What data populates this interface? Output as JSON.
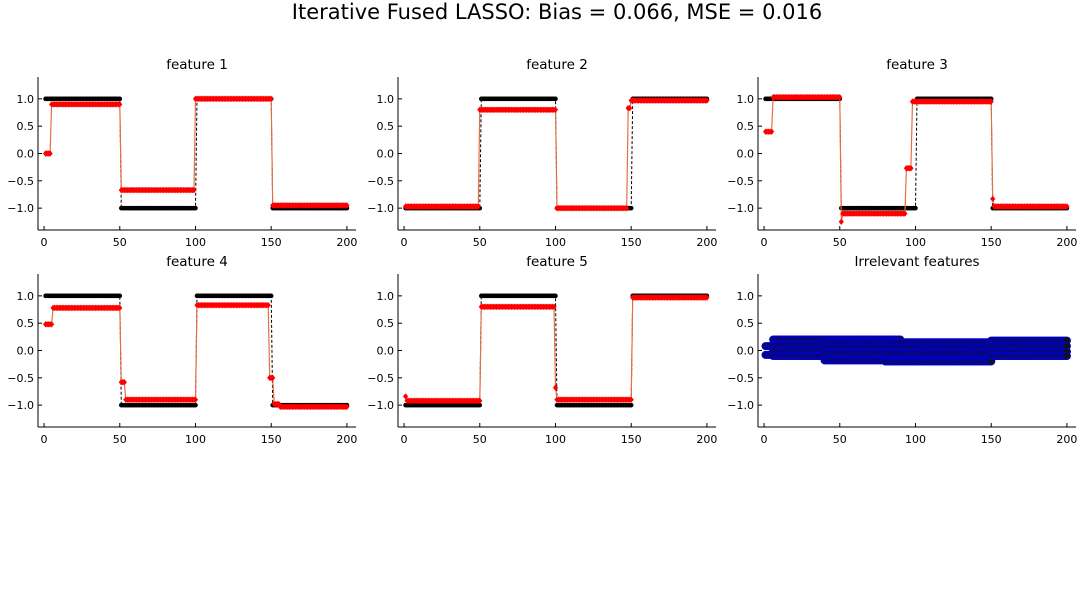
{
  "figure": {
    "title": "Iterative Fused LASSO: Bias = 0.066, MSE = 0.016"
  },
  "colors": {
    "truth": "#000000",
    "estimate_marker": "#ff0000",
    "estimate_line": "#e26f46",
    "irrelevant_marker": "#0000cc",
    "axis": "#000000"
  },
  "chart_data": [
    {
      "type": "line",
      "title": "feature 1",
      "xlabel": "",
      "ylabel": "",
      "xlim": [
        -4,
        206
      ],
      "ylim": [
        -1.4,
        1.4
      ],
      "xticks": [
        "0",
        "50",
        "100",
        "150",
        "200"
      ],
      "yticks": [
        "-1.0",
        "-0.5",
        "0.0",
        "0.5",
        "1.0"
      ],
      "grid": false,
      "series": [
        {
          "role": "truth",
          "style": "dashed line with dots",
          "segments": [
            [
              1,
              50,
              1.0
            ],
            [
              51,
              100,
              -1.0
            ],
            [
              101,
              150,
              1.0
            ],
            [
              151,
              200,
              -1.0
            ]
          ]
        },
        {
          "role": "estimate",
          "style": "line with diamond markers",
          "segments": [
            [
              1,
              4,
              0.0
            ],
            [
              5,
              50,
              0.9
            ],
            [
              51,
              99,
              -0.67
            ],
            [
              100,
              150,
              1.0
            ],
            [
              151,
              200,
              -0.95
            ]
          ]
        }
      ]
    },
    {
      "type": "line",
      "title": "feature 2",
      "xlabel": "",
      "ylabel": "",
      "xlim": [
        -4,
        206
      ],
      "ylim": [
        -1.4,
        1.4
      ],
      "xticks": [
        "0",
        "50",
        "100",
        "150",
        "200"
      ],
      "yticks": [
        "-1.0",
        "-0.5",
        "0.0",
        "0.5",
        "1.0"
      ],
      "grid": false,
      "series": [
        {
          "role": "truth",
          "style": "dashed line with dots",
          "segments": [
            [
              1,
              50,
              -1.0
            ],
            [
              51,
              100,
              1.0
            ],
            [
              101,
              150,
              -1.0
            ],
            [
              151,
              200,
              1.0
            ]
          ]
        },
        {
          "role": "estimate",
          "style": "line with diamond markers",
          "segments": [
            [
              1,
              49,
              -0.97
            ],
            [
              50,
              100,
              0.8
            ],
            [
              101,
              147,
              -1.0
            ],
            [
              148,
              149,
              0.83
            ],
            [
              150,
              200,
              0.97
            ]
          ]
        }
      ]
    },
    {
      "type": "line",
      "title": "feature 3",
      "xlabel": "",
      "ylabel": "",
      "xlim": [
        -4,
        206
      ],
      "ylim": [
        -1.4,
        1.4
      ],
      "xticks": [
        "0",
        "50",
        "100",
        "150",
        "200"
      ],
      "yticks": [
        "-1.0",
        "-0.5",
        "0.0",
        "0.5",
        "1.0"
      ],
      "grid": false,
      "series": [
        {
          "role": "truth",
          "style": "dashed line with dots",
          "segments": [
            [
              1,
              50,
              1.0
            ],
            [
              51,
              100,
              -1.0
            ],
            [
              101,
              150,
              1.0
            ],
            [
              151,
              200,
              -1.0
            ]
          ]
        },
        {
          "role": "estimate",
          "style": "line with diamond markers",
          "segments": [
            [
              1,
              5,
              0.4
            ],
            [
              6,
              50,
              1.03
            ],
            [
              51,
              51,
              -1.25
            ],
            [
              52,
              93,
              -1.1
            ],
            [
              94,
              97,
              -0.27
            ],
            [
              98,
              150,
              0.95
            ],
            [
              151,
              151,
              -0.83
            ],
            [
              152,
              200,
              -0.97
            ]
          ]
        }
      ]
    },
    {
      "type": "line",
      "title": "feature 4",
      "xlabel": "",
      "ylabel": "",
      "xlim": [
        -4,
        206
      ],
      "ylim": [
        -1.4,
        1.4
      ],
      "xticks": [
        "0",
        "50",
        "100",
        "150",
        "200"
      ],
      "yticks": [
        "-1.0",
        "-0.5",
        "0.0",
        "0.5",
        "1.0"
      ],
      "grid": false,
      "series": [
        {
          "role": "truth",
          "style": "dashed line with dots",
          "segments": [
            [
              1,
              50,
              1.0
            ],
            [
              51,
              100,
              -1.0
            ],
            [
              101,
              150,
              1.0
            ],
            [
              151,
              200,
              -1.0
            ]
          ]
        },
        {
          "role": "estimate",
          "style": "line with diamond markers",
          "segments": [
            [
              1,
              5,
              0.48
            ],
            [
              6,
              50,
              0.78
            ],
            [
              51,
              53,
              -0.58
            ],
            [
              54,
              100,
              -0.9
            ],
            [
              101,
              148,
              0.83
            ],
            [
              149,
              151,
              -0.5
            ],
            [
              152,
              155,
              -0.98
            ],
            [
              156,
              200,
              -1.03
            ]
          ]
        }
      ]
    },
    {
      "type": "line",
      "title": "feature 5",
      "xlabel": "",
      "ylabel": "",
      "xlim": [
        -4,
        206
      ],
      "ylim": [
        -1.4,
        1.4
      ],
      "xticks": [
        "0",
        "50",
        "100",
        "150",
        "200"
      ],
      "yticks": [
        "-1.0",
        "-0.5",
        "0.0",
        "0.5",
        "1.0"
      ],
      "grid": false,
      "series": [
        {
          "role": "truth",
          "style": "dashed line with dots",
          "segments": [
            [
              1,
              50,
              -1.0
            ],
            [
              51,
              100,
              1.0
            ],
            [
              101,
              150,
              -1.0
            ],
            [
              151,
              200,
              1.0
            ]
          ]
        },
        {
          "role": "estimate",
          "style": "line with diamond markers",
          "segments": [
            [
              1,
              1,
              -0.84
            ],
            [
              2,
              50,
              -0.92
            ],
            [
              51,
              99,
              0.8
            ],
            [
              100,
              100,
              -0.68
            ],
            [
              101,
              150,
              -0.9
            ],
            [
              151,
              200,
              0.97
            ]
          ]
        }
      ]
    },
    {
      "type": "scatter",
      "title": "Irrelevant features",
      "xlabel": "",
      "ylabel": "",
      "xlim": [
        -4,
        206
      ],
      "ylim": [
        -1.4,
        1.4
      ],
      "xticks": [
        "0",
        "50",
        "100",
        "150",
        "200"
      ],
      "yticks": [
        "-1.0",
        "-0.5",
        "0.0",
        "0.5",
        "1.0"
      ],
      "grid": false,
      "series": [
        {
          "role": "irrelevant",
          "style": "dense markers",
          "segments": [
            [
              1,
              5,
              0.08
            ],
            [
              1,
              5,
              -0.08
            ],
            [
              6,
              90,
              0.2
            ],
            [
              6,
              90,
              0.1
            ],
            [
              6,
              90,
              0.0
            ],
            [
              6,
              90,
              -0.1
            ],
            [
              40,
              150,
              0.15
            ],
            [
              40,
              150,
              0.05
            ],
            [
              40,
              150,
              -0.05
            ],
            [
              40,
              150,
              -0.18
            ],
            [
              80,
              150,
              -0.2
            ],
            [
              150,
              200,
              0.18
            ],
            [
              150,
              200,
              0.08
            ],
            [
              150,
              200,
              -0.02
            ],
            [
              150,
              200,
              -0.1
            ]
          ]
        }
      ]
    }
  ]
}
